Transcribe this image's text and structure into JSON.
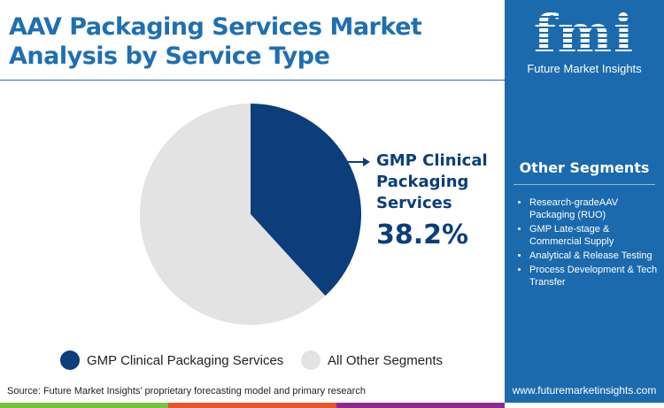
{
  "title": "AAV Packaging Services Market Analysis by Service Type",
  "brand": {
    "logo_text": "fmi",
    "name": "Future Market Insights",
    "url": "www.futuremarketinsights.com"
  },
  "other_segments": {
    "title": "Other Segments",
    "items": [
      "Research-gradeAAV Packaging (RUO)",
      "GMP Late-stage & Commercial Supply",
      "Analytical & Release Testing",
      "Process Development & Tech Transfer"
    ]
  },
  "source": "Source: Future Market Insights’ proprietary forecasting model and primary research",
  "colors": {
    "primary": "#0b3e7a",
    "other": "#e3e3e3",
    "panel": "#1b6aae",
    "bars": [
      "#7cc242",
      "#e8572a",
      "#8e2b8a"
    ]
  },
  "chart_data": {
    "type": "pie",
    "slices": [
      {
        "label": "GMP Clinical Packaging Services",
        "value": 38.2,
        "color": "#0b3e7a"
      },
      {
        "label": "All Other Segments",
        "value": 61.8,
        "color": "#e3e3e3"
      }
    ],
    "callout": {
      "label": "GMP Clinical Packaging Services",
      "value_text": "38.2%"
    },
    "legend": [
      "GMP Clinical Packaging Services",
      "All Other Segments"
    ],
    "legend_placement": "bottom"
  }
}
